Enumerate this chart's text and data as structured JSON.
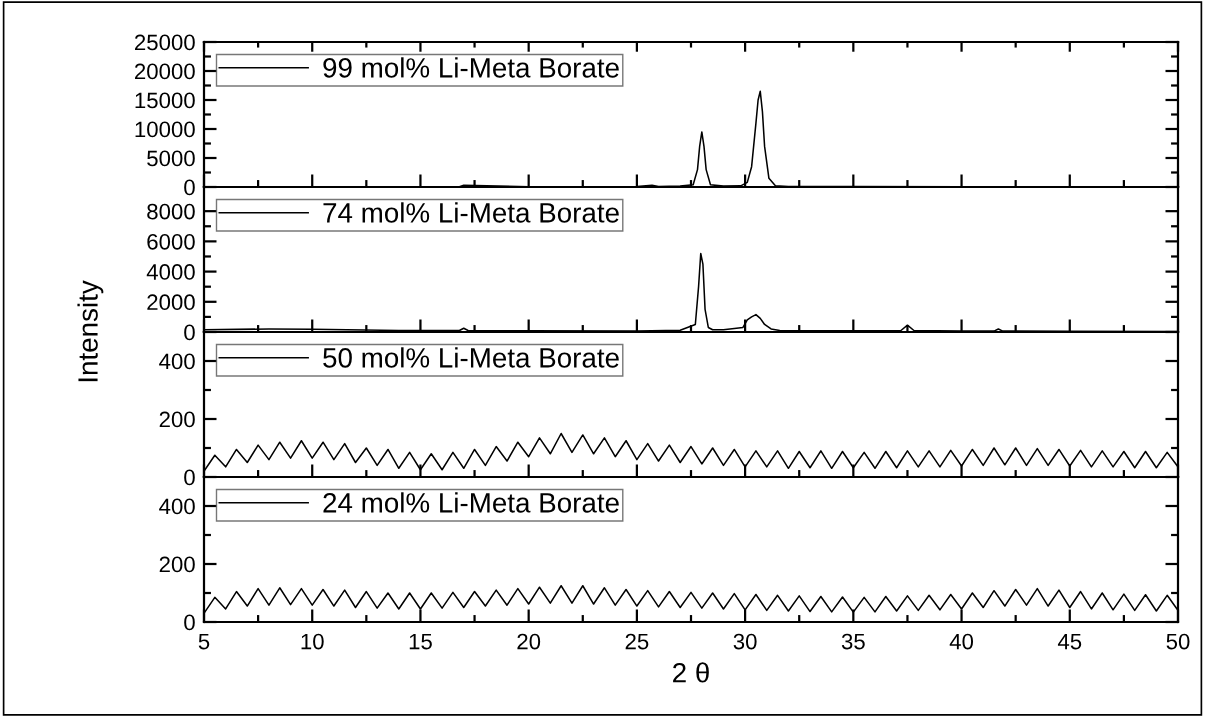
{
  "chart_data": [
    {
      "type": "line",
      "ylabel": "Intensity",
      "xlim": [
        5,
        50
      ],
      "xticks": [
        5,
        10,
        15,
        20,
        25,
        30,
        35,
        40,
        45,
        50
      ],
      "ylim": [
        0,
        25000
      ],
      "yticks": [
        0,
        5000,
        10000,
        15000,
        20000,
        25000
      ],
      "tick_labels": "y",
      "legend": "top left",
      "grid": false,
      "marker": "none",
      "line_style": "solid",
      "series": [
        {
          "name": "99 mol% Li-Meta Borate",
          "color": "#000000",
          "x": [
            5,
            10,
            15,
            16.8,
            17,
            20,
            25,
            25.7,
            26,
            27,
            27.6,
            27.8,
            27.9,
            28.0,
            28.1,
            28.2,
            28.4,
            29,
            29.8,
            30.1,
            30.3,
            30.5,
            30.6,
            30.7,
            30.8,
            30.9,
            31.1,
            31.4,
            32,
            35,
            40,
            45,
            50
          ],
          "values": [
            50,
            50,
            50,
            50,
            300,
            60,
            80,
            300,
            80,
            150,
            400,
            3000,
            7000,
            9500,
            7000,
            3000,
            400,
            150,
            200,
            800,
            3500,
            11000,
            15000,
            16500,
            13000,
            7000,
            1500,
            200,
            100,
            80,
            60,
            50,
            40
          ]
        }
      ]
    },
    {
      "type": "line",
      "xlim": [
        5,
        50
      ],
      "xticks": [
        5,
        10,
        15,
        20,
        25,
        30,
        35,
        40,
        45,
        50
      ],
      "ylim": [
        0,
        9600
      ],
      "yticks": [
        0,
        2000,
        4000,
        6000,
        8000
      ],
      "tick_labels": "y",
      "legend": "top left",
      "grid": false,
      "marker": "none",
      "line_style": "solid",
      "series": [
        {
          "name": "74 mol% Li-Meta Borate",
          "color": "#000000",
          "x": [
            5,
            8,
            10,
            14,
            16.8,
            17,
            17.2,
            20,
            25,
            27,
            27.7,
            27.85,
            27.95,
            28.05,
            28.15,
            28.3,
            28.5,
            29,
            29.9,
            30.1,
            30.3,
            30.5,
            30.7,
            30.9,
            31.2,
            31.6,
            33,
            37.2,
            37.5,
            37.8,
            40,
            41.5,
            41.7,
            41.9,
            45,
            50
          ],
          "values": [
            150,
            200,
            180,
            100,
            100,
            250,
            100,
            80,
            70,
            120,
            500,
            3000,
            5200,
            4500,
            1500,
            300,
            150,
            150,
            300,
            800,
            1000,
            1150,
            900,
            500,
            200,
            100,
            80,
            100,
            450,
            100,
            60,
            60,
            200,
            60,
            50,
            40
          ]
        }
      ]
    },
    {
      "type": "line",
      "xlim": [
        5,
        50
      ],
      "xticks": [
        5,
        10,
        15,
        20,
        25,
        30,
        35,
        40,
        45,
        50
      ],
      "ylim": [
        0,
        500
      ],
      "yticks": [
        0,
        200,
        400
      ],
      "tick_labels": "y",
      "legend": "top left",
      "grid": false,
      "marker": "none",
      "line_style": "solid",
      "series": [
        {
          "name": "50 mol% Li-Meta Borate",
          "color": "#000000",
          "x": [
            5,
            5.5,
            6,
            6.5,
            7,
            7.5,
            8,
            8.5,
            9,
            9.5,
            10,
            10.5,
            11,
            11.5,
            12,
            12.5,
            13,
            13.5,
            14,
            14.5,
            15,
            15.5,
            16,
            16.5,
            17,
            17.5,
            18,
            18.5,
            19,
            19.5,
            20,
            20.5,
            21,
            21.5,
            22,
            22.5,
            23,
            23.5,
            24,
            24.5,
            25,
            25.5,
            26,
            26.5,
            27,
            27.5,
            28,
            28.5,
            29,
            29.5,
            30,
            30.5,
            31,
            31.5,
            32,
            32.5,
            33,
            33.5,
            34,
            34.5,
            35,
            35.5,
            36,
            36.5,
            37,
            37.5,
            38,
            38.5,
            39,
            39.5,
            40,
            40.5,
            41,
            41.5,
            42,
            42.5,
            43,
            43.5,
            44,
            44.5,
            45,
            45.5,
            46,
            46.5,
            47,
            47.5,
            48,
            48.5,
            49,
            49.5,
            50
          ],
          "values": [
            20,
            75,
            35,
            95,
            50,
            110,
            60,
            120,
            65,
            125,
            65,
            120,
            60,
            115,
            50,
            100,
            40,
            95,
            30,
            85,
            25,
            80,
            25,
            85,
            30,
            95,
            40,
            105,
            55,
            120,
            70,
            135,
            80,
            150,
            85,
            145,
            80,
            135,
            70,
            125,
            60,
            115,
            55,
            110,
            50,
            105,
            45,
            100,
            40,
            95,
            35,
            90,
            35,
            90,
            30,
            88,
            32,
            90,
            30,
            88,
            32,
            85,
            30,
            88,
            32,
            90,
            35,
            90,
            35,
            92,
            38,
            95,
            40,
            100,
            42,
            100,
            40,
            98,
            40,
            95,
            38,
            92,
            35,
            90,
            35,
            88,
            32,
            88,
            32,
            85,
            35
          ]
        }
      ]
    },
    {
      "type": "line",
      "xlabel": "2 θ",
      "xlim": [
        5,
        50
      ],
      "xticks": [
        5,
        10,
        15,
        20,
        25,
        30,
        35,
        40,
        45,
        50
      ],
      "ylim": [
        0,
        500
      ],
      "yticks": [
        0,
        200,
        400
      ],
      "legend": "top left",
      "grid": false,
      "marker": "none",
      "line_style": "solid",
      "series": [
        {
          "name": "24 mol% Li-Meta Borate",
          "color": "#000000",
          "x": [
            5,
            5.5,
            6,
            6.5,
            7,
            7.5,
            8,
            8.5,
            9,
            9.5,
            10,
            10.5,
            11,
            11.5,
            12,
            12.5,
            13,
            13.5,
            14,
            14.5,
            15,
            15.5,
            16,
            16.5,
            17,
            17.5,
            18,
            18.5,
            19,
            19.5,
            20,
            20.5,
            21,
            21.5,
            22,
            22.5,
            23,
            23.5,
            24,
            24.5,
            25,
            25.5,
            26,
            26.5,
            27,
            27.5,
            28,
            28.5,
            29,
            29.5,
            30,
            30.5,
            31,
            31.5,
            32,
            32.5,
            33,
            33.5,
            34,
            34.5,
            35,
            35.5,
            36,
            36.5,
            37,
            37.5,
            38,
            38.5,
            39,
            39.5,
            40,
            40.5,
            41,
            41.5,
            42,
            42.5,
            43,
            43.5,
            44,
            44.5,
            45,
            45.5,
            46,
            46.5,
            47,
            47.5,
            48,
            48.5,
            49,
            49.5,
            50
          ],
          "values": [
            30,
            85,
            45,
            105,
            55,
            115,
            58,
            118,
            60,
            115,
            58,
            112,
            55,
            110,
            50,
            105,
            48,
            100,
            45,
            100,
            45,
            100,
            48,
            102,
            50,
            105,
            55,
            110,
            58,
            115,
            62,
            120,
            65,
            125,
            65,
            125,
            62,
            118,
            58,
            112,
            55,
            108,
            52,
            105,
            50,
            102,
            48,
            100,
            45,
            98,
            42,
            95,
            40,
            92,
            38,
            90,
            36,
            88,
            35,
            86,
            34,
            85,
            35,
            88,
            38,
            90,
            40,
            92,
            42,
            95,
            45,
            100,
            50,
            108,
            55,
            112,
            58,
            115,
            55,
            110,
            50,
            105,
            45,
            100,
            42,
            96,
            40,
            94,
            38,
            92,
            40
          ]
        }
      ]
    }
  ]
}
